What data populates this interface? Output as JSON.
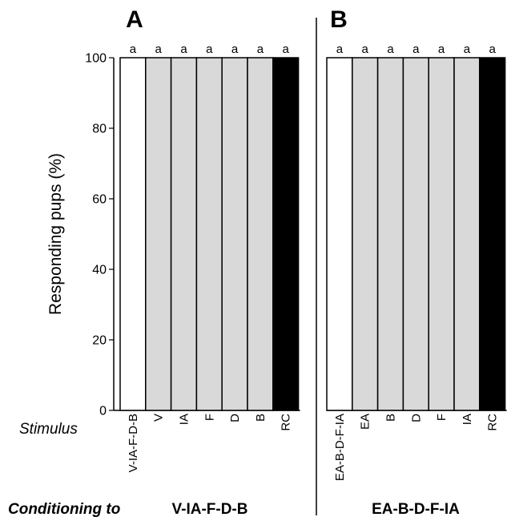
{
  "chart_data": [
    {
      "type": "bar",
      "panel": "A",
      "categories": [
        "V-IA-F-D-B",
        "V",
        "IA",
        "F",
        "D",
        "B",
        "RC"
      ],
      "values": [
        100,
        100,
        100,
        100,
        100,
        100,
        100
      ],
      "colors": [
        "#ffffff",
        "#d9d9d9",
        "#d9d9d9",
        "#d9d9d9",
        "#d9d9d9",
        "#d9d9d9",
        "#000000"
      ],
      "significance": [
        "a",
        "a",
        "a",
        "a",
        "a",
        "a",
        "a"
      ],
      "ylabel": "Responding pups (%)",
      "ylim": [
        0,
        100
      ],
      "yticks": [
        0,
        20,
        40,
        60,
        80,
        100
      ],
      "grid": false,
      "conditioning": "V-IA-F-D-B"
    },
    {
      "type": "bar",
      "panel": "B",
      "categories": [
        "EA-B-D-F-IA",
        "EA",
        "B",
        "D",
        "F",
        "IA",
        "RC"
      ],
      "values": [
        100,
        100,
        100,
        100,
        100,
        100,
        100
      ],
      "colors": [
        "#ffffff",
        "#d9d9d9",
        "#d9d9d9",
        "#d9d9d9",
        "#d9d9d9",
        "#d9d9d9",
        "#000000"
      ],
      "significance": [
        "a",
        "a",
        "a",
        "a",
        "a",
        "a",
        "a"
      ],
      "ylim": [
        0,
        100
      ],
      "grid": false,
      "conditioning": "EA-B-D-F-IA"
    }
  ],
  "labels": {
    "stimulus": "Stimulus",
    "conditioning_to": "Conditioning to"
  }
}
